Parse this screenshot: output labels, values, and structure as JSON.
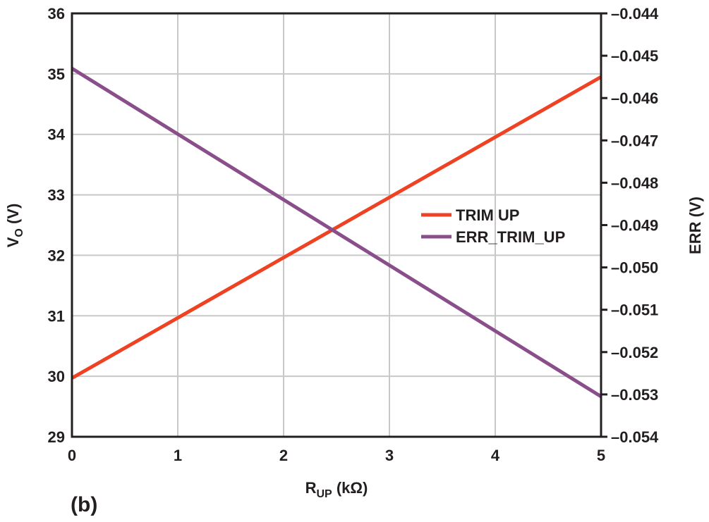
{
  "panel_label": "(b)",
  "colors": {
    "grid": "#c8c8c8",
    "axis": "#231f20",
    "trim_up": "#ee4223",
    "err_trim_up": "#8a4e8b"
  },
  "chart_data": {
    "type": "line",
    "xlabel": {
      "main": "R",
      "sub": "UP",
      "unit": " (kΩ)"
    },
    "ylabel_left": {
      "main": "V",
      "sub": "O",
      "unit": " (V)"
    },
    "ylabel_right": "ERR (V)",
    "xlim": [
      0,
      5
    ],
    "ylim_left": [
      29,
      36
    ],
    "ylim_right": [
      -0.054,
      -0.044
    ],
    "x_ticks": [
      "0",
      "1",
      "2",
      "3",
      "4",
      "5"
    ],
    "y_left_ticks": [
      "29",
      "30",
      "31",
      "32",
      "33",
      "34",
      "35",
      "36"
    ],
    "y_right_ticks": [
      "–0.054",
      "–0.053",
      "–0.052",
      "–0.051",
      "–0.050",
      "–0.049",
      "–0.048",
      "–0.047",
      "–0.046",
      "–0.045",
      "–0.044"
    ],
    "grid": true,
    "legend_position": "center-right",
    "series": [
      {
        "name": "TRIM UP",
        "axis": "left",
        "x": [
          0,
          5
        ],
        "y": [
          29.97,
          34.95
        ]
      },
      {
        "name": "ERR_TRIM_UP",
        "axis": "right",
        "x": [
          0,
          5
        ],
        "y": [
          -0.0453,
          -0.05305
        ]
      }
    ]
  }
}
